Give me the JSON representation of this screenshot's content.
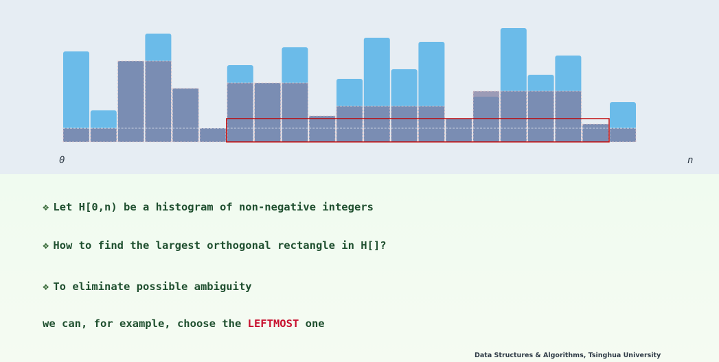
{
  "chart_data": {
    "type": "bar",
    "values": [
      6.6,
      2.3,
      5.9,
      7.9,
      3.9,
      1.0,
      5.6,
      4.3,
      6.9,
      1.9,
      4.6,
      7.6,
      5.3,
      7.3,
      1.7,
      3.3,
      8.3,
      4.9,
      6.3,
      1.3,
      2.9
    ],
    "x_axis_labels": {
      "start": "0",
      "end": "n"
    },
    "highlight": {
      "start_index": 6,
      "end_index": 20,
      "height": 1.7
    },
    "overlay_heights": [
      1.0,
      1.0,
      5.9,
      5.9,
      3.9,
      1.0,
      4.3,
      4.3,
      4.3,
      1.9,
      2.6,
      2.6,
      2.6,
      2.6,
      1.7,
      3.7,
      3.7,
      3.7,
      3.7,
      1.3,
      1.0
    ]
  },
  "text": {
    "line1": "Let H[0,n) be a histogram of non-negative integers",
    "line2": "How to find the largest orthogonal rectangle in H[]?",
    "line3": "To eliminate possible ambiguity",
    "line4_pre": "we can, for example, choose the ",
    "line4_hl": "LEFTMOST",
    "line4_post": " one"
  },
  "bullet_glyph": "❖",
  "footer": "Data Structures & Algorithms, Tsinghua University",
  "colors": {
    "bar": "#6bbbe9",
    "overlay": "#7f7b9e",
    "highlight_box": "#c00000"
  }
}
